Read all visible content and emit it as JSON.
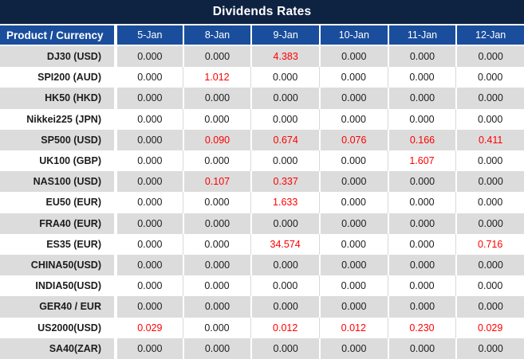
{
  "title": "Dividends Rates",
  "colors": {
    "title_bg": "#0E2342",
    "header_bg": "#1A4E9C",
    "row_gray": "#DCDCDC",
    "row_white": "#FFFFFF",
    "gridline": "#D9D9D9",
    "highlight_red": "#FF0000",
    "text_dark": "#1C1C1C",
    "header_text": "#FFFFFF"
  },
  "table": {
    "product_header": "Product / Currency",
    "date_headers": [
      "5-Jan",
      "8-Jan",
      "9-Jan",
      "10-Jan",
      "11-Jan",
      "12-Jan"
    ],
    "rows": [
      {
        "product": "DJ30 (USD)",
        "values": [
          "0.000",
          "0.000",
          "4.383",
          "0.000",
          "0.000",
          "0.000"
        ]
      },
      {
        "product": "SPI200 (AUD)",
        "values": [
          "0.000",
          "1.012",
          "0.000",
          "0.000",
          "0.000",
          "0.000"
        ]
      },
      {
        "product": "HK50 (HKD)",
        "values": [
          "0.000",
          "0.000",
          "0.000",
          "0.000",
          "0.000",
          "0.000"
        ]
      },
      {
        "product": "Nikkei225 (JPN)",
        "values": [
          "0.000",
          "0.000",
          "0.000",
          "0.000",
          "0.000",
          "0.000"
        ]
      },
      {
        "product": "SP500 (USD)",
        "values": [
          "0.000",
          "0.090",
          "0.674",
          "0.076",
          "0.166",
          "0.411"
        ]
      },
      {
        "product": "UK100 (GBP)",
        "values": [
          "0.000",
          "0.000",
          "0.000",
          "0.000",
          "1.607",
          "0.000"
        ]
      },
      {
        "product": "NAS100 (USD)",
        "values": [
          "0.000",
          "0.107",
          "0.337",
          "0.000",
          "0.000",
          "0.000"
        ]
      },
      {
        "product": "EU50 (EUR)",
        "values": [
          "0.000",
          "0.000",
          "1.633",
          "0.000",
          "0.000",
          "0.000"
        ]
      },
      {
        "product": "FRA40 (EUR)",
        "values": [
          "0.000",
          "0.000",
          "0.000",
          "0.000",
          "0.000",
          "0.000"
        ]
      },
      {
        "product": "ES35 (EUR)",
        "values": [
          "0.000",
          "0.000",
          "34.574",
          "0.000",
          "0.000",
          "0.716"
        ]
      },
      {
        "product": "CHINA50(USD)",
        "values": [
          "0.000",
          "0.000",
          "0.000",
          "0.000",
          "0.000",
          "0.000"
        ]
      },
      {
        "product": "INDIA50(USD)",
        "values": [
          "0.000",
          "0.000",
          "0.000",
          "0.000",
          "0.000",
          "0.000"
        ]
      },
      {
        "product": "GER40 / EUR",
        "values": [
          "0.000",
          "0.000",
          "0.000",
          "0.000",
          "0.000",
          "0.000"
        ]
      },
      {
        "product": "US2000(USD)",
        "values": [
          "0.029",
          "0.000",
          "0.012",
          "0.012",
          "0.230",
          "0.029"
        ]
      },
      {
        "product": "SA40(ZAR)",
        "values": [
          "0.000",
          "0.000",
          "0.000",
          "0.000",
          "0.000",
          "0.000"
        ]
      }
    ]
  }
}
